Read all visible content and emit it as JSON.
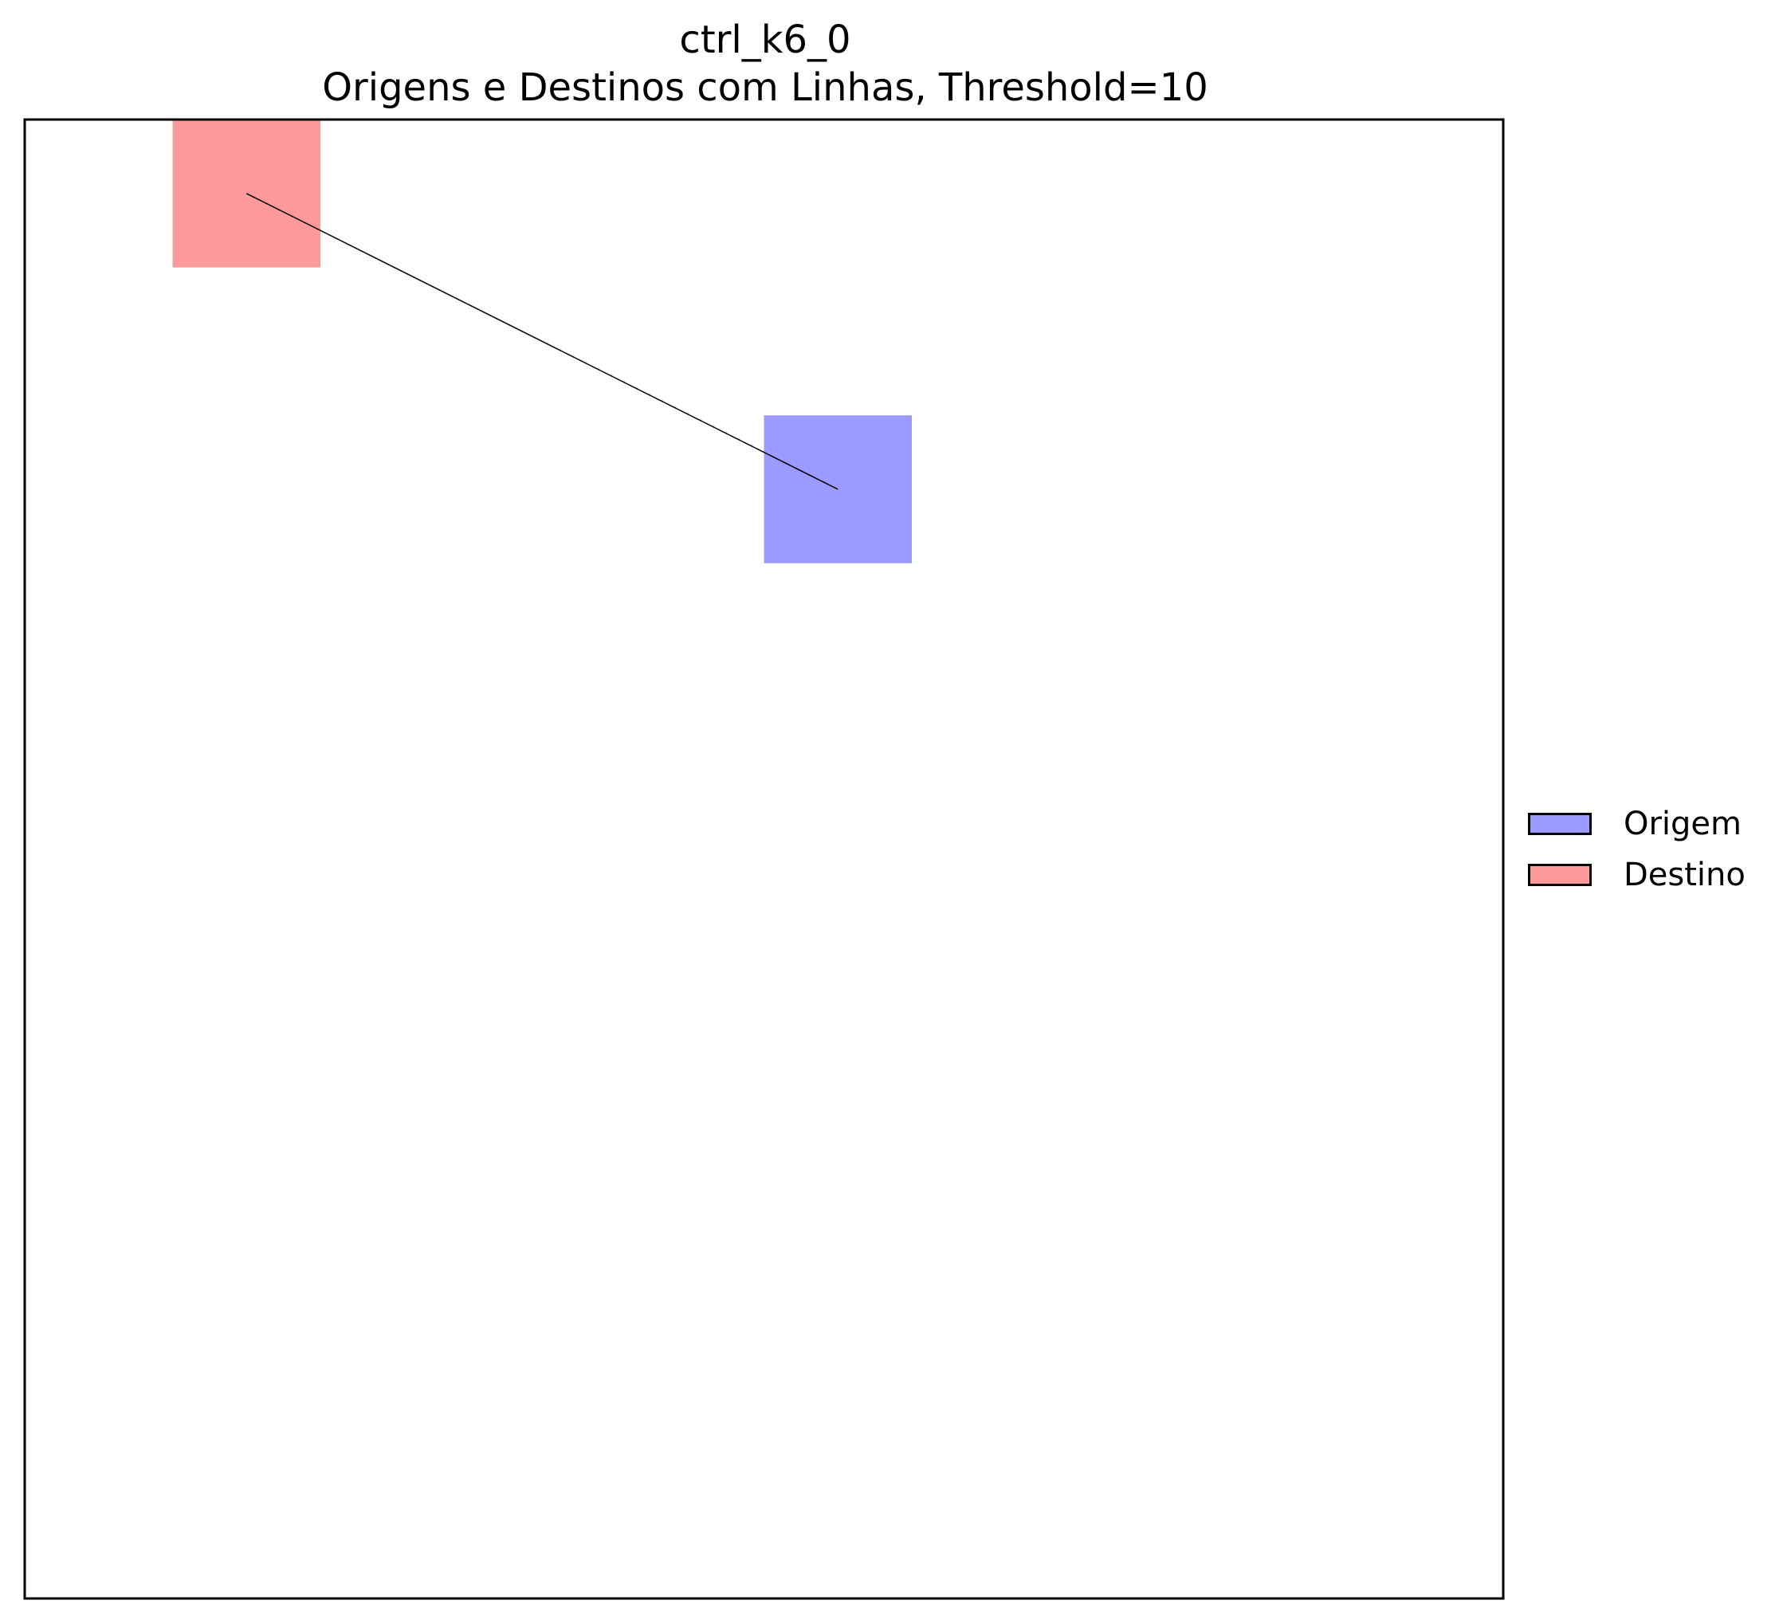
{
  "chart_data": {
    "type": "scatter",
    "title": "ctrl_k6_0",
    "subtitle": "Origens e Destinos com Linhas, Threshold=10",
    "xlabel": "",
    "ylabel": "",
    "xlim": [
      0,
      100
    ],
    "ylim": [
      0,
      100
    ],
    "y_inverted": true,
    "grid": false,
    "axis_ticks": false,
    "legend_position": "center-right-outside",
    "series": [
      {
        "name": "Origem",
        "color": "#9a9aff",
        "marker": "square",
        "points": [
          {
            "x": 55,
            "y": 25,
            "size": 10
          }
        ]
      },
      {
        "name": "Destino",
        "color": "#ff9a9a",
        "marker": "square",
        "points": [
          {
            "x": 15,
            "y": 5,
            "size": 10
          }
        ]
      }
    ],
    "connections": [
      {
        "from": {
          "x": 55,
          "y": 25
        },
        "to": {
          "x": 15,
          "y": 5
        },
        "color": "#000000"
      }
    ],
    "legend": [
      {
        "label": "Origem",
        "color": "#9a9aff"
      },
      {
        "label": "Destino",
        "color": "#ff9a9a"
      }
    ]
  }
}
